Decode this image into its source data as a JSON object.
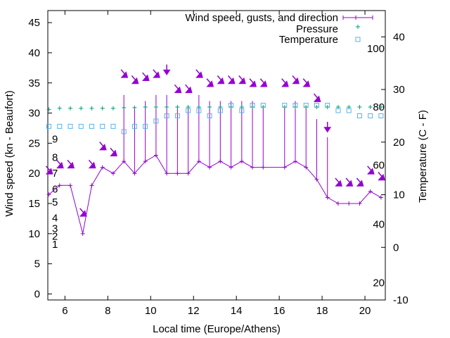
{
  "chart_data": {
    "type": "line",
    "xlabel": "Local time (Europe/Athens)",
    "ylabel": "Wind speed (kn - Beaufort)",
    "y2label": "Temperature (C - F)",
    "xlim": [
      5.2,
      20.95
    ],
    "ylim": [
      -1,
      47
    ],
    "y2lim": [
      -10,
      45
    ],
    "x_ticks": [
      6,
      8,
      10,
      12,
      14,
      16,
      18,
      20
    ],
    "y_ticks": [
      0,
      5,
      10,
      15,
      20,
      25,
      30,
      35,
      40,
      45
    ],
    "y2_ticks": [
      -10,
      0,
      10,
      20,
      30,
      40
    ],
    "beaufort_labels": [
      {
        "label": "1",
        "y": 0.6
      },
      {
        "label": "2",
        "y": 2.1
      },
      {
        "label": "3",
        "y": 3.6
      },
      {
        "label": "4",
        "y": 5.6
      },
      {
        "label": "5",
        "y": 8.6
      },
      {
        "label": "6",
        "y": 11.1
      },
      {
        "label": "7",
        "y": 14.1
      },
      {
        "label": "8",
        "y": 17.1
      },
      {
        "label": "9",
        "y": 20.6
      }
    ],
    "fahrenheit_labels": [
      {
        "label": "100",
        "y": 37.8
      },
      {
        "label": "80",
        "y": 26.7
      },
      {
        "label": "60",
        "y": 15.6
      },
      {
        "label": "40",
        "y": 4.4
      },
      {
        "label": "20",
        "y": -6.7
      }
    ],
    "legend": {
      "position": "top-right",
      "entries": [
        "Wind speed, gusts, and direction",
        "Pressure",
        "Temperature"
      ]
    },
    "series": [
      {
        "name": "Wind speed, gusts, and direction",
        "color": "#9400d3",
        "x": [
          5.25,
          5.75,
          6.25,
          6.83,
          7.25,
          7.75,
          8.25,
          8.75,
          9.25,
          9.75,
          10.25,
          10.75,
          11.25,
          11.75,
          12.25,
          12.75,
          13.25,
          13.75,
          14.25,
          14.75,
          15.25,
          16.25,
          16.75,
          17.25,
          17.75,
          18.25,
          18.75,
          19.25,
          19.75,
          20.25,
          20.75
        ],
        "speed": [
          16.5,
          18,
          18,
          10,
          18,
          21,
          20,
          22,
          20,
          22,
          23,
          20,
          20,
          20,
          22,
          21,
          22,
          21,
          22,
          21,
          21,
          21,
          22,
          21,
          19,
          16,
          15,
          15,
          15,
          17,
          16
        ],
        "gust": [
          16.5,
          18,
          18,
          10,
          18,
          21,
          20,
          33,
          31,
          32,
          33,
          33,
          31,
          31,
          33,
          32,
          32,
          32,
          32,
          32,
          31,
          31,
          32,
          31,
          29,
          26,
          15,
          15,
          15,
          17,
          16
        ],
        "arrow_y": [
          20.5,
          21.5,
          21.5,
          13.5,
          21.5,
          24.5,
          23.5,
          36.5,
          35.5,
          36,
          36.5,
          37,
          34,
          34,
          36.5,
          35,
          35.5,
          35.5,
          35.5,
          35,
          35,
          35,
          35.5,
          35,
          32.5,
          27.5,
          18.5,
          18.5,
          18.5,
          20.5,
          19.5
        ],
        "arrow_dir": [
          "sw",
          "sw",
          "sw",
          "sw",
          "sw",
          "sw",
          "sw",
          "sw",
          "sw",
          "sw",
          "sw",
          "s",
          "sw",
          "sw",
          "sw",
          "sw",
          "sw",
          "sw",
          "sw",
          "sw",
          "sw",
          "sw",
          "sw",
          "sw",
          "sw",
          "s",
          "sw",
          "sw",
          "sw",
          "sw",
          "sw"
        ]
      },
      {
        "name": "Pressure",
        "color": "#009e73",
        "x": [
          5.25,
          5.75,
          6.25,
          6.75,
          7.25,
          7.75,
          8.25,
          8.75,
          9.25,
          9.75,
          10.25,
          10.75,
          11.25,
          11.75,
          12.25,
          12.75,
          13.25,
          13.75,
          14.25,
          14.75,
          15.25,
          16.25,
          16.75,
          17.25,
          17.75,
          18.25,
          18.75,
          19.25,
          19.75,
          20.25,
          20.75
        ],
        "values": [
          30.6,
          30.8,
          30.8,
          30.8,
          30.8,
          30.8,
          30.8,
          30.9,
          30.9,
          31,
          31,
          31,
          31,
          31,
          31,
          31,
          31,
          31,
          31,
          31,
          31,
          31,
          31,
          31,
          31,
          31,
          31,
          31,
          31,
          31,
          31
        ]
      },
      {
        "name": "Temperature",
        "color": "#56b4e9",
        "x": [
          5.25,
          5.75,
          6.25,
          6.75,
          7.25,
          7.75,
          8.25,
          8.75,
          9.25,
          9.75,
          10.25,
          10.75,
          11.25,
          11.75,
          12.25,
          12.75,
          13.25,
          13.75,
          14.25,
          14.75,
          15.25,
          16.25,
          16.75,
          17.25,
          17.75,
          18.25,
          18.75,
          19.25,
          19.75,
          20.25,
          20.75
        ],
        "values": [
          23,
          23,
          23,
          23,
          23,
          23,
          23,
          22,
          23,
          23,
          24,
          25,
          25,
          26,
          26,
          25,
          26,
          27,
          26,
          27,
          27,
          27,
          27,
          27,
          27,
          27,
          26,
          26,
          25,
          25,
          25
        ]
      }
    ]
  }
}
